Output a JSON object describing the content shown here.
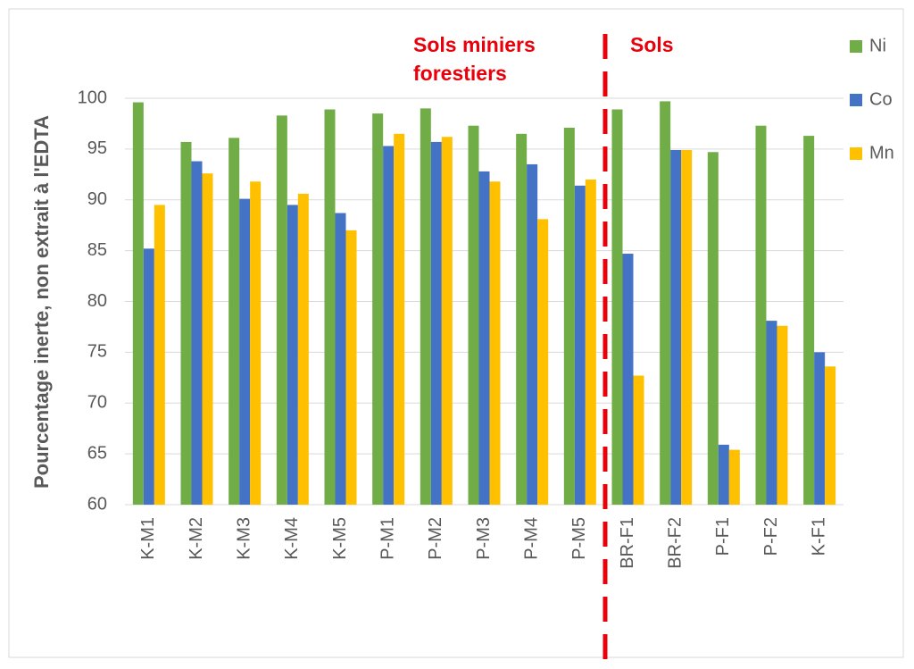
{
  "chart_data": {
    "type": "bar",
    "ylabel": "Pourcentage inerte, non extrait à l'EDTA",
    "annotations": [
      "Sols miniers",
      "forestiers",
      "Sols"
    ],
    "categories": [
      "K-M1",
      "K-M2",
      "K-M3",
      "K-M4",
      "K-M5",
      "P-M1",
      "P-M2",
      "P-M3",
      "P-M4",
      "P-M5",
      "BR-F1",
      "BR-F2",
      "P-F1",
      "P-F2",
      "K-F1"
    ],
    "series": [
      {
        "name": "Ni",
        "color": "#70ad47",
        "values": [
          99.6,
          95.7,
          96.1,
          98.3,
          98.9,
          98.5,
          99.0,
          97.3,
          96.5,
          97.1,
          98.9,
          99.7,
          94.7,
          97.3,
          96.3
        ]
      },
      {
        "name": "Co",
        "color": "#4472c4",
        "values": [
          85.2,
          93.8,
          90.1,
          89.5,
          88.7,
          95.3,
          95.7,
          92.8,
          93.5,
          91.4,
          84.7,
          94.9,
          65.9,
          78.1,
          75.0
        ]
      },
      {
        "name": "Mn",
        "color": "#ffc000",
        "values": [
          89.5,
          92.6,
          91.8,
          90.6,
          87.0,
          96.5,
          96.2,
          91.8,
          88.1,
          92.0,
          72.7,
          94.9,
          65.4,
          77.6,
          73.6
        ]
      }
    ],
    "ylim": [
      60,
      100
    ],
    "yticks": [
      60,
      65,
      70,
      75,
      80,
      85,
      90,
      95,
      100
    ],
    "grid": true,
    "legend": "right"
  }
}
